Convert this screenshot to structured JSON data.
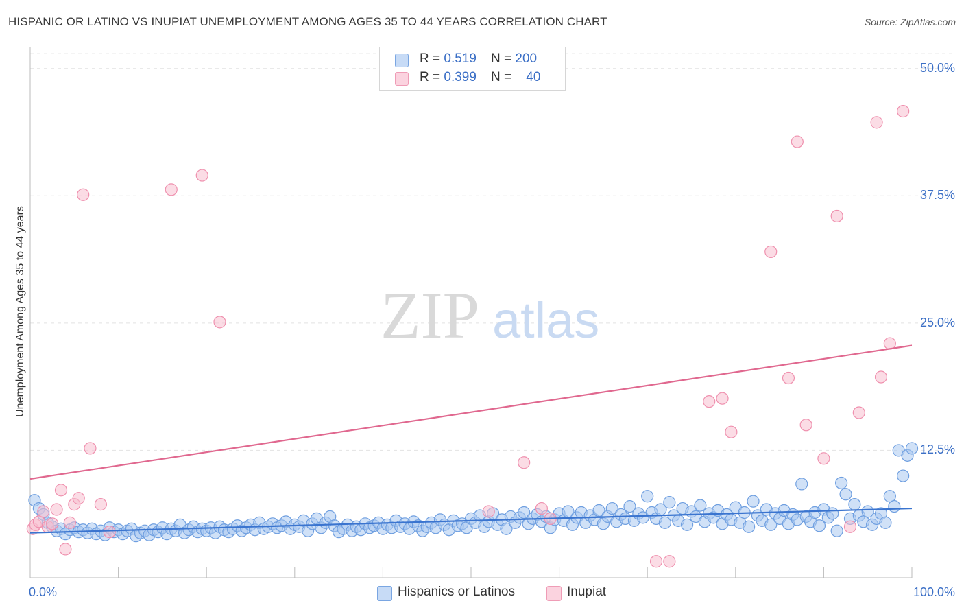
{
  "header": {
    "title": "HISPANIC OR LATINO VS INUPIAT UNEMPLOYMENT AMONG AGES 35 TO 44 YEARS CORRELATION CHART",
    "source": "Source: ZipAtlas.com"
  },
  "watermark": {
    "zip": "ZIP",
    "atlas": "atlas"
  },
  "legend_top": {
    "rows": [
      {
        "r_label": "R = ",
        "r_value": "0.519",
        "n_label": "N = ",
        "n_value": "200",
        "color": "#a8c8f0"
      },
      {
        "r_label": "R = ",
        "r_value": "0.399",
        "n_label": "N = ",
        "n_value": "40",
        "color": "#f7b6c9"
      }
    ]
  },
  "chart_data": {
    "type": "scatter",
    "title": "HISPANIC OR LATINO VS INUPIAT UNEMPLOYMENT AMONG AGES 35 TO 44 YEARS CORRELATION CHART",
    "xlabel": "",
    "ylabel": "Unemployment Among Ages 35 to 44 years",
    "xlim": [
      0,
      100
    ],
    "ylim": [
      0,
      52
    ],
    "x_tick_labels": {
      "left": "0.0%",
      "right": "100.0%"
    },
    "y_ticks": [
      {
        "value": 12.5,
        "label": "12.5%"
      },
      {
        "value": 25.0,
        "label": "25.0%"
      },
      {
        "value": 37.5,
        "label": "37.5%"
      },
      {
        "value": 50.0,
        "label": "50.0%"
      }
    ],
    "grid": true,
    "legend_position": "bottom",
    "series": [
      {
        "name": "Hispanics or Latinos",
        "color": "#6f9fe0",
        "fill": "#aac8f0",
        "line_color": "#3a74cf",
        "trend": [
          [
            0,
            4.4
          ],
          [
            100,
            6.8
          ]
        ],
        "points": [
          [
            0.5,
            7.6
          ],
          [
            1,
            6.8
          ],
          [
            1.5,
            6.2
          ],
          [
            2,
            5.4
          ],
          [
            2.5,
            5.0
          ],
          [
            3,
            4.6
          ],
          [
            3.5,
            4.8
          ],
          [
            4,
            4.3
          ],
          [
            4.5,
            4.7
          ],
          [
            5,
            4.9
          ],
          [
            5.5,
            4.5
          ],
          [
            6,
            4.7
          ],
          [
            6.5,
            4.4
          ],
          [
            7,
            4.8
          ],
          [
            7.5,
            4.3
          ],
          [
            8,
            4.6
          ],
          [
            8.5,
            4.2
          ],
          [
            9,
            4.9
          ],
          [
            9.5,
            4.5
          ],
          [
            10,
            4.7
          ],
          [
            10.5,
            4.3
          ],
          [
            11,
            4.6
          ],
          [
            11.5,
            4.8
          ],
          [
            12,
            4.1
          ],
          [
            12.5,
            4.4
          ],
          [
            13,
            4.6
          ],
          [
            13.5,
            4.2
          ],
          [
            14,
            4.7
          ],
          [
            14.5,
            4.5
          ],
          [
            15,
            4.9
          ],
          [
            15.5,
            4.3
          ],
          [
            16,
            4.8
          ],
          [
            16.5,
            4.6
          ],
          [
            17,
            5.2
          ],
          [
            17.5,
            4.4
          ],
          [
            18,
            4.7
          ],
          [
            18.5,
            5.0
          ],
          [
            19,
            4.5
          ],
          [
            19.5,
            4.8
          ],
          [
            20,
            4.6
          ],
          [
            20.5,
            4.9
          ],
          [
            21,
            4.4
          ],
          [
            21.5,
            5.0
          ],
          [
            22,
            4.7
          ],
          [
            22.5,
            4.5
          ],
          [
            23,
            4.8
          ],
          [
            23.5,
            5.1
          ],
          [
            24,
            4.6
          ],
          [
            24.5,
            4.9
          ],
          [
            25,
            5.2
          ],
          [
            25.5,
            4.7
          ],
          [
            26,
            5.4
          ],
          [
            26.5,
            4.8
          ],
          [
            27,
            5.0
          ],
          [
            27.5,
            5.3
          ],
          [
            28,
            4.9
          ],
          [
            28.5,
            5.1
          ],
          [
            29,
            5.5
          ],
          [
            29.5,
            4.8
          ],
          [
            30,
            5.2
          ],
          [
            30.5,
            5.0
          ],
          [
            31,
            5.6
          ],
          [
            31.5,
            4.6
          ],
          [
            32,
            5.3
          ],
          [
            32.5,
            5.8
          ],
          [
            33,
            4.9
          ],
          [
            33.5,
            5.4
          ],
          [
            34,
            6.0
          ],
          [
            34.5,
            5.1
          ],
          [
            35,
            4.5
          ],
          [
            35.5,
            4.8
          ],
          [
            36,
            5.2
          ],
          [
            36.5,
            4.6
          ],
          [
            37,
            5.0
          ],
          [
            37.5,
            4.7
          ],
          [
            38,
            5.3
          ],
          [
            38.5,
            4.9
          ],
          [
            39,
            5.1
          ],
          [
            39.5,
            5.4
          ],
          [
            40,
            4.8
          ],
          [
            40.5,
            5.2
          ],
          [
            41,
            4.9
          ],
          [
            41.5,
            5.6
          ],
          [
            42,
            5.0
          ],
          [
            42.5,
            5.3
          ],
          [
            43,
            4.8
          ],
          [
            43.5,
            5.5
          ],
          [
            44,
            5.1
          ],
          [
            44.5,
            4.6
          ],
          [
            45,
            5.0
          ],
          [
            45.5,
            5.4
          ],
          [
            46,
            4.9
          ],
          [
            46.5,
            5.7
          ],
          [
            47,
            5.2
          ],
          [
            47.5,
            4.7
          ],
          [
            48,
            5.6
          ],
          [
            48.5,
            5.1
          ],
          [
            49,
            5.3
          ],
          [
            49.5,
            4.9
          ],
          [
            50,
            5.8
          ],
          [
            50.5,
            5.4
          ],
          [
            51,
            6.1
          ],
          [
            51.5,
            5.0
          ],
          [
            52,
            5.5
          ],
          [
            52.5,
            6.3
          ],
          [
            53,
            5.2
          ],
          [
            53.5,
            5.7
          ],
          [
            54,
            4.8
          ],
          [
            54.5,
            6.0
          ],
          [
            55,
            5.4
          ],
          [
            55.5,
            5.9
          ],
          [
            56,
            6.4
          ],
          [
            56.5,
            5.3
          ],
          [
            57,
            5.8
          ],
          [
            57.5,
            6.2
          ],
          [
            58,
            5.5
          ],
          [
            58.5,
            6.0
          ],
          [
            59,
            4.9
          ],
          [
            59.5,
            5.7
          ],
          [
            60,
            6.3
          ],
          [
            60.5,
            5.6
          ],
          [
            61,
            6.5
          ],
          [
            61.5,
            5.2
          ],
          [
            62,
            5.9
          ],
          [
            62.5,
            6.4
          ],
          [
            63,
            5.4
          ],
          [
            63.5,
            6.1
          ],
          [
            64,
            5.7
          ],
          [
            64.5,
            6.6
          ],
          [
            65,
            5.3
          ],
          [
            65.5,
            6.0
          ],
          [
            66,
            6.8
          ],
          [
            66.5,
            5.5
          ],
          [
            67,
            6.2
          ],
          [
            67.5,
            5.8
          ],
          [
            68,
            7.0
          ],
          [
            68.5,
            5.6
          ],
          [
            69,
            6.3
          ],
          [
            69.5,
            5.9
          ],
          [
            70,
            8.0
          ],
          [
            70.5,
            6.4
          ],
          [
            71,
            5.8
          ],
          [
            71.5,
            6.7
          ],
          [
            72,
            5.4
          ],
          [
            72.5,
            7.4
          ],
          [
            73,
            6.1
          ],
          [
            73.5,
            5.6
          ],
          [
            74,
            6.8
          ],
          [
            74.5,
            5.2
          ],
          [
            75,
            6.5
          ],
          [
            75.5,
            6.0
          ],
          [
            76,
            7.1
          ],
          [
            76.5,
            5.5
          ],
          [
            77,
            6.3
          ],
          [
            77.5,
            5.9
          ],
          [
            78,
            6.6
          ],
          [
            78.5,
            5.3
          ],
          [
            79,
            6.2
          ],
          [
            79.5,
            5.7
          ],
          [
            80,
            6.9
          ],
          [
            80.5,
            5.4
          ],
          [
            81,
            6.4
          ],
          [
            81.5,
            5.0
          ],
          [
            82,
            7.5
          ],
          [
            82.5,
            6.1
          ],
          [
            83,
            5.6
          ],
          [
            83.5,
            6.7
          ],
          [
            84,
            5.2
          ],
          [
            84.5,
            6.3
          ],
          [
            85,
            5.8
          ],
          [
            85.5,
            6.6
          ],
          [
            86,
            5.3
          ],
          [
            86.5,
            6.2
          ],
          [
            87,
            5.7
          ],
          [
            87.5,
            9.2
          ],
          [
            88,
            6.0
          ],
          [
            88.5,
            5.5
          ],
          [
            89,
            6.4
          ],
          [
            89.5,
            5.1
          ],
          [
            90,
            6.7
          ],
          [
            90.5,
            5.9
          ],
          [
            91,
            6.3
          ],
          [
            91.5,
            4.6
          ],
          [
            92,
            9.3
          ],
          [
            92.5,
            8.2
          ],
          [
            93,
            5.8
          ],
          [
            93.5,
            7.2
          ],
          [
            94,
            6.1
          ],
          [
            94.5,
            5.5
          ],
          [
            95,
            6.5
          ],
          [
            95.5,
            5.2
          ],
          [
            96,
            5.8
          ],
          [
            96.5,
            6.3
          ],
          [
            97,
            5.4
          ],
          [
            97.5,
            8.0
          ],
          [
            98,
            7.0
          ],
          [
            98.5,
            12.5
          ],
          [
            99,
            10.0
          ],
          [
            99.5,
            12.0
          ],
          [
            100,
            12.7
          ]
        ]
      },
      {
        "name": "Inupiat",
        "color": "#ef90ae",
        "fill": "#f8bfd0",
        "line_color": "#e0688f",
        "trend": [
          [
            0,
            9.7
          ],
          [
            100,
            22.8
          ]
        ],
        "points": [
          [
            0.3,
            4.8
          ],
          [
            0.6,
            5.2
          ],
          [
            1.0,
            5.5
          ],
          [
            1.5,
            6.5
          ],
          [
            2.0,
            5.0
          ],
          [
            2.5,
            5.3
          ],
          [
            3.0,
            6.7
          ],
          [
            3.5,
            8.6
          ],
          [
            4.0,
            2.8
          ],
          [
            4.5,
            5.4
          ],
          [
            5.0,
            7.2
          ],
          [
            5.5,
            7.8
          ],
          [
            6.0,
            37.6
          ],
          [
            6.8,
            12.7
          ],
          [
            8.0,
            7.2
          ],
          [
            9.0,
            4.5
          ],
          [
            16.0,
            38.1
          ],
          [
            19.5,
            39.5
          ],
          [
            21.5,
            25.1
          ],
          [
            52.0,
            6.5
          ],
          [
            56.0,
            11.3
          ],
          [
            58.0,
            6.8
          ],
          [
            59.0,
            5.8
          ],
          [
            71.0,
            1.6
          ],
          [
            72.5,
            1.6
          ],
          [
            77.0,
            17.3
          ],
          [
            78.5,
            17.6
          ],
          [
            79.5,
            14.3
          ],
          [
            84.0,
            32.0
          ],
          [
            86.0,
            19.6
          ],
          [
            87.0,
            42.8
          ],
          [
            88.0,
            15.0
          ],
          [
            90.0,
            11.7
          ],
          [
            91.5,
            35.5
          ],
          [
            93.0,
            5.0
          ],
          [
            94.0,
            16.2
          ],
          [
            96.0,
            44.7
          ],
          [
            96.5,
            19.7
          ],
          [
            97.5,
            23.0
          ],
          [
            99.0,
            45.8
          ]
        ]
      }
    ]
  },
  "legend_bottom": {
    "items": [
      {
        "label": "Hispanics or Latinos",
        "color": "#a8c8f0"
      },
      {
        "label": "Inupiat",
        "color": "#f7b6c9"
      }
    ]
  }
}
